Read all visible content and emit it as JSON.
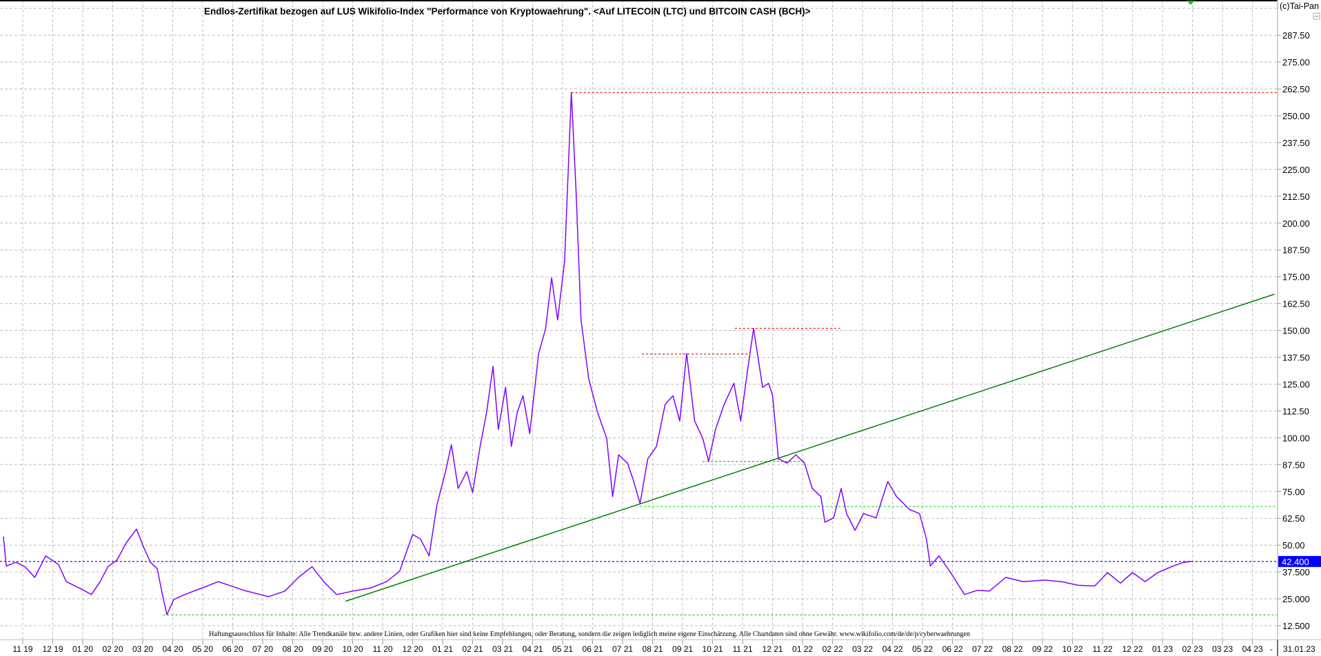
{
  "chart_data": {
    "type": "line",
    "title": "Endlos-Zertifikat bezogen auf LUS Wikifolio-Index \"Performance von Kryptowaehrung\". <Auf LITECOIN (LTC) und BITCOIN CASH (BCH)>",
    "copyright": "(c)Tai-Pan",
    "disclaimer": "Haftungsausschluss für Inhalte: Alle Trendkanäle bzw. andere Linien, oder Grafiken hier sind keine Empfehlungen, oder Beratung, sondern die zeigen lediglich meine eigene Einschätzung. Alle Chartdaten sind ohne Gewähr.  www.wikifolio.com/de/de/p/cyberwaehrungen",
    "ylim": [
      12.5,
      300
    ],
    "y_axis_side": "right",
    "grid": true,
    "y_ticks": [
      {
        "value": 287.5,
        "label": "287.50"
      },
      {
        "value": 275,
        "label": "275.00"
      },
      {
        "value": 262.5,
        "label": "262.50"
      },
      {
        "value": 250,
        "label": "250.00"
      },
      {
        "value": 237.5,
        "label": "237.50"
      },
      {
        "value": 225,
        "label": "225.00"
      },
      {
        "value": 212.5,
        "label": "212.50"
      },
      {
        "value": 200,
        "label": "200.00"
      },
      {
        "value": 187.5,
        "label": "187.50"
      },
      {
        "value": 175,
        "label": "175.00"
      },
      {
        "value": 162.5,
        "label": "162.50"
      },
      {
        "value": 150,
        "label": "150.00"
      },
      {
        "value": 137.5,
        "label": "137.50"
      },
      {
        "value": 125,
        "label": "125.00"
      },
      {
        "value": 112.5,
        "label": "112.50"
      },
      {
        "value": 100,
        "label": "100.00"
      },
      {
        "value": 87.5,
        "label": "87.50"
      },
      {
        "value": 75,
        "label": "75.00"
      },
      {
        "value": 62.5,
        "label": "62.50"
      },
      {
        "value": 50,
        "label": "50.00"
      },
      {
        "value": 37.5,
        "label": "37.500"
      },
      {
        "value": 25,
        "label": "25.000"
      },
      {
        "value": 12.5,
        "label": "12.500"
      }
    ],
    "x_ticks": [
      "11 19",
      "12 19",
      "01 20",
      "02 20",
      "03 20",
      "04 20",
      "05 20",
      "06 20",
      "07 20",
      "08 20",
      "09 20",
      "10 20",
      "11 20",
      "12 20",
      "01 21",
      "02 21",
      "03 21",
      "04 21",
      "05 21",
      "06 21",
      "07 21",
      "08 21",
      "09 21",
      "10 21",
      "11 21",
      "12 21",
      "01 22",
      "02 22",
      "03 22",
      "04 22",
      "05 22",
      "06 22",
      "07 22",
      "08 22",
      "09 22",
      "10 22",
      "11 22",
      "12 22",
      "01 23",
      "02 23",
      "03 23",
      "04 23"
    ],
    "x_tick_start": "2019-11-01",
    "x_end_separator": "-",
    "last_date": "31.01.23",
    "last_value": {
      "value": 42.4,
      "label": "42.400",
      "color": "#0000ff"
    },
    "series": [
      {
        "color": "#8000ff",
        "points": [
          [
            "2019-10-12",
            54
          ],
          [
            "2019-10-15",
            40.3
          ],
          [
            "2019-10-25",
            42
          ],
          [
            "2019-11-03",
            40
          ],
          [
            "2019-11-13",
            35
          ],
          [
            "2019-11-24",
            45
          ],
          [
            "2019-12-07",
            41
          ],
          [
            "2019-12-15",
            33
          ],
          [
            "2020-01-02",
            29
          ],
          [
            "2020-01-10",
            27
          ],
          [
            "2020-01-19",
            33
          ],
          [
            "2020-01-27",
            40
          ],
          [
            "2020-02-05",
            43
          ],
          [
            "2020-02-14",
            51
          ],
          [
            "2020-02-24",
            57.5
          ],
          [
            "2020-03-02",
            49
          ],
          [
            "2020-03-09",
            42
          ],
          [
            "2020-03-16",
            39
          ],
          [
            "2020-03-22",
            25.5
          ],
          [
            "2020-03-26",
            17.6
          ],
          [
            "2020-04-02",
            24.7
          ],
          [
            "2020-04-13",
            27
          ],
          [
            "2020-04-30",
            30
          ],
          [
            "2020-05-17",
            33
          ],
          [
            "2020-06-12",
            29
          ],
          [
            "2020-07-07",
            26
          ],
          [
            "2020-07-24",
            28.6
          ],
          [
            "2020-08-07",
            35
          ],
          [
            "2020-08-21",
            40
          ],
          [
            "2020-09-02",
            33
          ],
          [
            "2020-09-15",
            27
          ],
          [
            "2020-10-01",
            28.6
          ],
          [
            "2020-10-19",
            30
          ],
          [
            "2020-11-05",
            33
          ],
          [
            "2020-11-18",
            37.9
          ],
          [
            "2020-12-01",
            55
          ],
          [
            "2020-12-09",
            52.9
          ],
          [
            "2020-12-18",
            45
          ],
          [
            "2020-12-26",
            68.6
          ],
          [
            "2021-01-04",
            84.3
          ],
          [
            "2021-01-10",
            96.8
          ],
          [
            "2021-01-17",
            76.4
          ],
          [
            "2021-01-26",
            84.3
          ],
          [
            "2021-02-01",
            74.5
          ],
          [
            "2021-02-08",
            96
          ],
          [
            "2021-02-14",
            111.7
          ],
          [
            "2021-02-20",
            133.3
          ],
          [
            "2021-02-25",
            103.9
          ],
          [
            "2021-03-04",
            123.5
          ],
          [
            "2021-03-10",
            96
          ],
          [
            "2021-03-16",
            111.7
          ],
          [
            "2021-03-22",
            119.6
          ],
          [
            "2021-03-29",
            102
          ],
          [
            "2021-04-07",
            139.2
          ],
          [
            "2021-04-14",
            150.9
          ],
          [
            "2021-04-20",
            174.5
          ],
          [
            "2021-04-26",
            154.9
          ],
          [
            "2021-05-03",
            182.3
          ],
          [
            "2021-05-10",
            260.8
          ],
          [
            "2021-05-15",
            213.7
          ],
          [
            "2021-05-20",
            154.9
          ],
          [
            "2021-05-28",
            127.4
          ],
          [
            "2021-06-06",
            111.7
          ],
          [
            "2021-06-15",
            99.9
          ],
          [
            "2021-06-21",
            72.6
          ],
          [
            "2021-06-27",
            92.1
          ],
          [
            "2021-07-06",
            88.2
          ],
          [
            "2021-07-12",
            80.4
          ],
          [
            "2021-07-19",
            69.4
          ],
          [
            "2021-07-27",
            90.2
          ],
          [
            "2021-08-05",
            96
          ],
          [
            "2021-08-14",
            115.6
          ],
          [
            "2021-08-22",
            119.6
          ],
          [
            "2021-08-29",
            107.8
          ],
          [
            "2021-09-05",
            139.2
          ],
          [
            "2021-09-13",
            107.8
          ],
          [
            "2021-09-21",
            99.9
          ],
          [
            "2021-09-27",
            89
          ],
          [
            "2021-10-04",
            103.9
          ],
          [
            "2021-10-13",
            115.6
          ],
          [
            "2021-10-23",
            125.4
          ],
          [
            "2021-10-30",
            107.8
          ],
          [
            "2021-11-06",
            131.4
          ],
          [
            "2021-11-12",
            150.9
          ],
          [
            "2021-11-21",
            123.5
          ],
          [
            "2021-11-27",
            125.4
          ],
          [
            "2021-12-01",
            119.6
          ],
          [
            "2021-12-07",
            90.2
          ],
          [
            "2021-12-16",
            88.2
          ],
          [
            "2021-12-25",
            92.1
          ],
          [
            "2022-01-03",
            88.2
          ],
          [
            "2022-01-11",
            76.4
          ],
          [
            "2022-01-20",
            72.6
          ],
          [
            "2022-01-24",
            60.7
          ],
          [
            "2022-02-02",
            62.7
          ],
          [
            "2022-02-09",
            76.4
          ],
          [
            "2022-02-14",
            64.7
          ],
          [
            "2022-02-22",
            56.9
          ],
          [
            "2022-03-02",
            64.7
          ],
          [
            "2022-03-15",
            62.7
          ],
          [
            "2022-03-27",
            79.6
          ],
          [
            "2022-04-05",
            72.6
          ],
          [
            "2022-04-18",
            66.6
          ],
          [
            "2022-04-28",
            64.7
          ],
          [
            "2022-05-05",
            52.9
          ],
          [
            "2022-05-09",
            40.3
          ],
          [
            "2022-05-18",
            45
          ],
          [
            "2022-05-30",
            37.2
          ],
          [
            "2022-06-13",
            27
          ],
          [
            "2022-06-26",
            29
          ],
          [
            "2022-07-08",
            28.6
          ],
          [
            "2022-07-25",
            35
          ],
          [
            "2022-08-12",
            33
          ],
          [
            "2022-09-03",
            33.7
          ],
          [
            "2022-09-20",
            33
          ],
          [
            "2022-10-07",
            31.3
          ],
          [
            "2022-10-24",
            31
          ],
          [
            "2022-11-06",
            37.2
          ],
          [
            "2022-11-19",
            32.3
          ],
          [
            "2022-12-01",
            37.2
          ],
          [
            "2022-12-14",
            33
          ],
          [
            "2022-12-27",
            37.2
          ],
          [
            "2023-01-12",
            40.3
          ],
          [
            "2023-01-22",
            41.9
          ],
          [
            "2023-01-31",
            42.4
          ]
        ]
      }
    ],
    "horizontal_lines": [
      {
        "value": 260.8,
        "from": "2021-05-10",
        "to": "end",
        "color": "#ff0000",
        "style": "dotted"
      },
      {
        "value": 151,
        "from": "2021-10-24",
        "to": "2022-02-08",
        "color": "#ff0000",
        "style": "dotted"
      },
      {
        "value": 139,
        "from": "2021-07-21",
        "to": "2021-11-07",
        "color": "#cc0000",
        "style": "dotted"
      },
      {
        "value": 89,
        "from": "2021-09-21",
        "to": "2022-01-03",
        "color": "#00dd00",
        "style": "dotted"
      },
      {
        "value": 68,
        "from": "2021-07-19",
        "to": "end",
        "color": "#00dd00",
        "style": "dotted"
      },
      {
        "value": 17.5,
        "from": "2020-03-22",
        "to": "end",
        "color": "#00dd00",
        "style": "dotted"
      },
      {
        "value": 42.4,
        "from": "start",
        "to": "end",
        "color": "#0000cc",
        "style": "dotted"
      }
    ],
    "trendlines": [
      {
        "from": [
          "2020-09-24",
          23.9
        ],
        "to": [
          "2023-04-23",
          166.9
        ],
        "color": "#008000"
      }
    ]
  }
}
